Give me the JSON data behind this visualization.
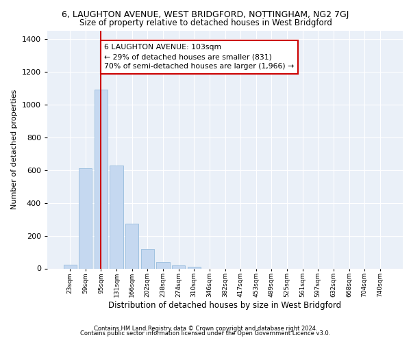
{
  "title": "6, LAUGHTON AVENUE, WEST BRIDGFORD, NOTTINGHAM, NG2 7GJ",
  "subtitle": "Size of property relative to detached houses in West Bridgford",
  "xlabel": "Distribution of detached houses by size in West Bridgford",
  "ylabel": "Number of detached properties",
  "footer_line1": "Contains HM Land Registry data © Crown copyright and database right 2024.",
  "footer_line2": "Contains public sector information licensed under the Open Government Licence v3.0.",
  "categories": [
    "23sqm",
    "59sqm",
    "95sqm",
    "131sqm",
    "166sqm",
    "202sqm",
    "238sqm",
    "274sqm",
    "310sqm",
    "346sqm",
    "382sqm",
    "417sqm",
    "453sqm",
    "489sqm",
    "525sqm",
    "561sqm",
    "597sqm",
    "632sqm",
    "668sqm",
    "704sqm",
    "740sqm"
  ],
  "values": [
    25,
    610,
    1090,
    630,
    275,
    120,
    40,
    20,
    10,
    0,
    0,
    0,
    0,
    0,
    0,
    0,
    0,
    0,
    0,
    0,
    0
  ],
  "bar_color": "#c5d8f0",
  "bar_edge_color": "#8ab4d8",
  "background_color": "#eaf0f8",
  "grid_color": "#ffffff",
  "red_line_x": 2,
  "annotation_text": "6 LAUGHTON AVENUE: 103sqm\n← 29% of detached houses are smaller (831)\n70% of semi-detached houses are larger (1,966) →",
  "annotation_box_color": "#ffffff",
  "annotation_border_color": "#cc0000",
  "ylim": [
    0,
    1450
  ],
  "yticks": [
    0,
    200,
    400,
    600,
    800,
    1000,
    1200,
    1400
  ]
}
